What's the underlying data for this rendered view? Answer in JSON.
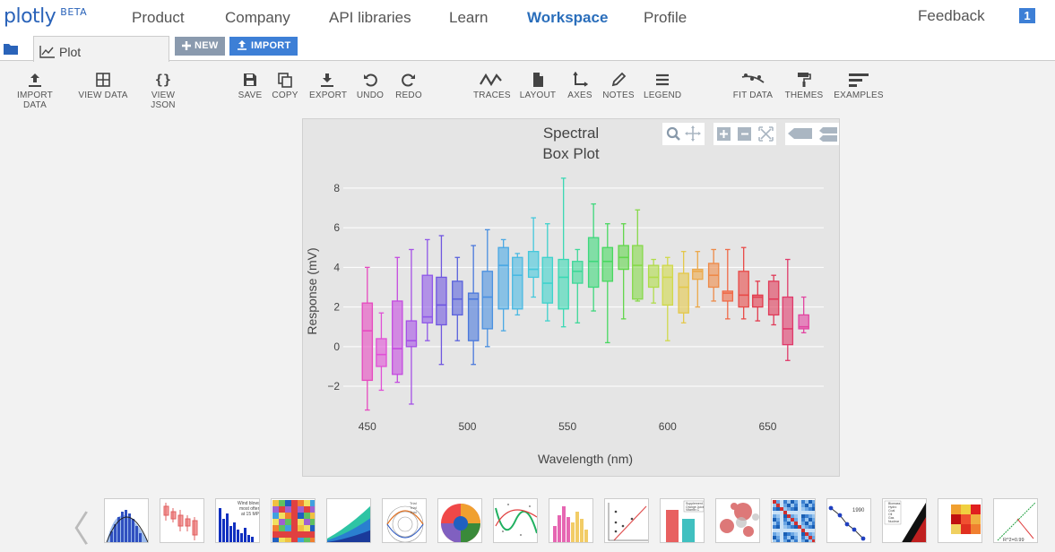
{
  "brand": {
    "name": "plotly",
    "tag": "BETA"
  },
  "nav": {
    "items": [
      "Product",
      "Company",
      "API libraries",
      "Learn",
      "Workspace",
      "Profile"
    ],
    "feedback": "Feedback",
    "notifications": "1"
  },
  "tabs": {
    "plot_label": "Plot",
    "new_label": "NEW",
    "import_label": "IMPORT"
  },
  "toolbar": {
    "import_data": "IMPORT DATA",
    "view_data": "VIEW DATA",
    "view_json": "VIEW JSON",
    "save": "SAVE",
    "copy": "COPY",
    "export": "EXPORT",
    "undo": "UNDO",
    "redo": "REDO",
    "traces": "TRACES",
    "layout": "LAYOUT",
    "axes": "AXES",
    "notes": "NOTES",
    "legend": "LEGEND",
    "fit_data": "FIT DATA",
    "themes": "THEMES",
    "examples": "EXAMPLES"
  },
  "chart_data": {
    "type": "box",
    "title": "Spectral Box Plot",
    "title_lines": [
      "Spectral",
      "Box Plot"
    ],
    "xlabel": "Wavelength (nm)",
    "ylabel": "Response (mV)",
    "xlim": [
      438,
      678
    ],
    "ylim": [
      -3.4,
      8.9
    ],
    "xticks": [
      450,
      500,
      550,
      600,
      650
    ],
    "yticks": [
      -2,
      0,
      2,
      4,
      6,
      8
    ],
    "grid": true,
    "series": [
      {
        "x": 450,
        "min": -3.2,
        "q1": -1.7,
        "median": 0.8,
        "q3": 2.2,
        "max": 4.0,
        "color": "#e64ac0"
      },
      {
        "x": 457,
        "min": -2.2,
        "q1": -1.0,
        "median": -0.4,
        "q3": 0.4,
        "max": 1.7,
        "color": "#e050d6"
      },
      {
        "x": 465,
        "min": -1.8,
        "q1": -1.4,
        "median": -0.1,
        "q3": 2.3,
        "max": 4.5,
        "color": "#c44be0"
      },
      {
        "x": 472,
        "min": -2.9,
        "q1": 0.0,
        "median": 0.3,
        "q3": 1.3,
        "max": 4.9,
        "color": "#a550e6"
      },
      {
        "x": 480,
        "min": 0.3,
        "q1": 1.2,
        "median": 1.5,
        "q3": 3.6,
        "max": 5.4,
        "color": "#8f58e8"
      },
      {
        "x": 487,
        "min": -0.9,
        "q1": 1.1,
        "median": 2.1,
        "q3": 3.5,
        "max": 5.6,
        "color": "#6f56e0"
      },
      {
        "x": 495,
        "min": 0.3,
        "q1": 1.6,
        "median": 2.4,
        "q3": 3.3,
        "max": 4.5,
        "color": "#5a62dc"
      },
      {
        "x": 503,
        "min": -0.9,
        "q1": 0.3,
        "median": 2.4,
        "q3": 2.7,
        "max": 5.1,
        "color": "#4a78dc"
      },
      {
        "x": 510,
        "min": 0.0,
        "q1": 0.9,
        "median": 2.5,
        "q3": 3.8,
        "max": 5.9,
        "color": "#4a90e0"
      },
      {
        "x": 518,
        "min": 0.8,
        "q1": 1.9,
        "median": 4.1,
        "q3": 5.0,
        "max": 5.4,
        "color": "#4aa8e4"
      },
      {
        "x": 525,
        "min": 1.6,
        "q1": 1.9,
        "median": 3.6,
        "q3": 4.5,
        "max": 4.7,
        "color": "#4ab9e2"
      },
      {
        "x": 533,
        "min": 2.5,
        "q1": 3.5,
        "median": 3.9,
        "q3": 4.8,
        "max": 6.5,
        "color": "#44c8dc"
      },
      {
        "x": 540,
        "min": 1.3,
        "q1": 2.2,
        "median": 3.2,
        "q3": 4.5,
        "max": 6.2,
        "color": "#3ed2cc"
      },
      {
        "x": 548,
        "min": 1.0,
        "q1": 1.9,
        "median": 3.5,
        "q3": 4.4,
        "max": 8.5,
        "color": "#3ad8b4"
      },
      {
        "x": 555,
        "min": 1.2,
        "q1": 3.2,
        "median": 3.8,
        "q3": 4.3,
        "max": 4.9,
        "color": "#3dd898"
      },
      {
        "x": 563,
        "min": 1.8,
        "q1": 3.0,
        "median": 4.3,
        "q3": 5.5,
        "max": 7.2,
        "color": "#3ed87c"
      },
      {
        "x": 570,
        "min": 0.2,
        "q1": 3.3,
        "median": 4.3,
        "q3": 5.0,
        "max": 6.2,
        "color": "#48d860"
      },
      {
        "x": 578,
        "min": 1.4,
        "q1": 3.9,
        "median": 4.5,
        "q3": 5.1,
        "max": 6.2,
        "color": "#62d64c"
      },
      {
        "x": 585,
        "min": 2.3,
        "q1": 2.4,
        "median": 4.1,
        "q3": 5.1,
        "max": 6.9,
        "color": "#86d94a"
      },
      {
        "x": 593,
        "min": 2.2,
        "q1": 3.0,
        "median": 3.5,
        "q3": 4.1,
        "max": 4.4,
        "color": "#b0dc4a"
      },
      {
        "x": 600,
        "min": 0.3,
        "q1": 2.1,
        "median": 3.5,
        "q3": 4.1,
        "max": 4.5,
        "color": "#d0d94a"
      },
      {
        "x": 608,
        "min": 1.2,
        "q1": 1.7,
        "median": 3.0,
        "q3": 3.7,
        "max": 4.8,
        "color": "#e4c84a"
      },
      {
        "x": 615,
        "min": 2.0,
        "q1": 3.4,
        "median": 3.8,
        "q3": 3.9,
        "max": 4.8,
        "color": "#eca84a"
      },
      {
        "x": 623,
        "min": 2.3,
        "q1": 3.0,
        "median": 3.6,
        "q3": 4.2,
        "max": 4.9,
        "color": "#ee8a48"
      },
      {
        "x": 630,
        "min": 1.4,
        "q1": 2.3,
        "median": 2.7,
        "q3": 2.8,
        "max": 4.9,
        "color": "#ef6a48"
      },
      {
        "x": 638,
        "min": 1.4,
        "q1": 2.0,
        "median": 2.6,
        "q3": 3.8,
        "max": 5.0,
        "color": "#e84a48"
      },
      {
        "x": 645,
        "min": 1.3,
        "q1": 2.0,
        "median": 2.5,
        "q3": 2.6,
        "max": 3.3,
        "color": "#e23a4c"
      },
      {
        "x": 653,
        "min": 1.1,
        "q1": 1.6,
        "median": 2.4,
        "q3": 3.3,
        "max": 3.6,
        "color": "#e03a58"
      },
      {
        "x": 660,
        "min": -0.7,
        "q1": 0.1,
        "median": 0.9,
        "q3": 2.5,
        "max": 4.4,
        "color": "#e03a6a"
      },
      {
        "x": 668,
        "min": 0.7,
        "q1": 0.9,
        "median": 1.0,
        "q3": 1.6,
        "max": 2.5,
        "color": "#e244a0"
      }
    ]
  },
  "gallery": {
    "prev_arrow": "〈"
  },
  "thumb_text": {
    "t10": "1990",
    "t17": "R^2=0.99"
  }
}
